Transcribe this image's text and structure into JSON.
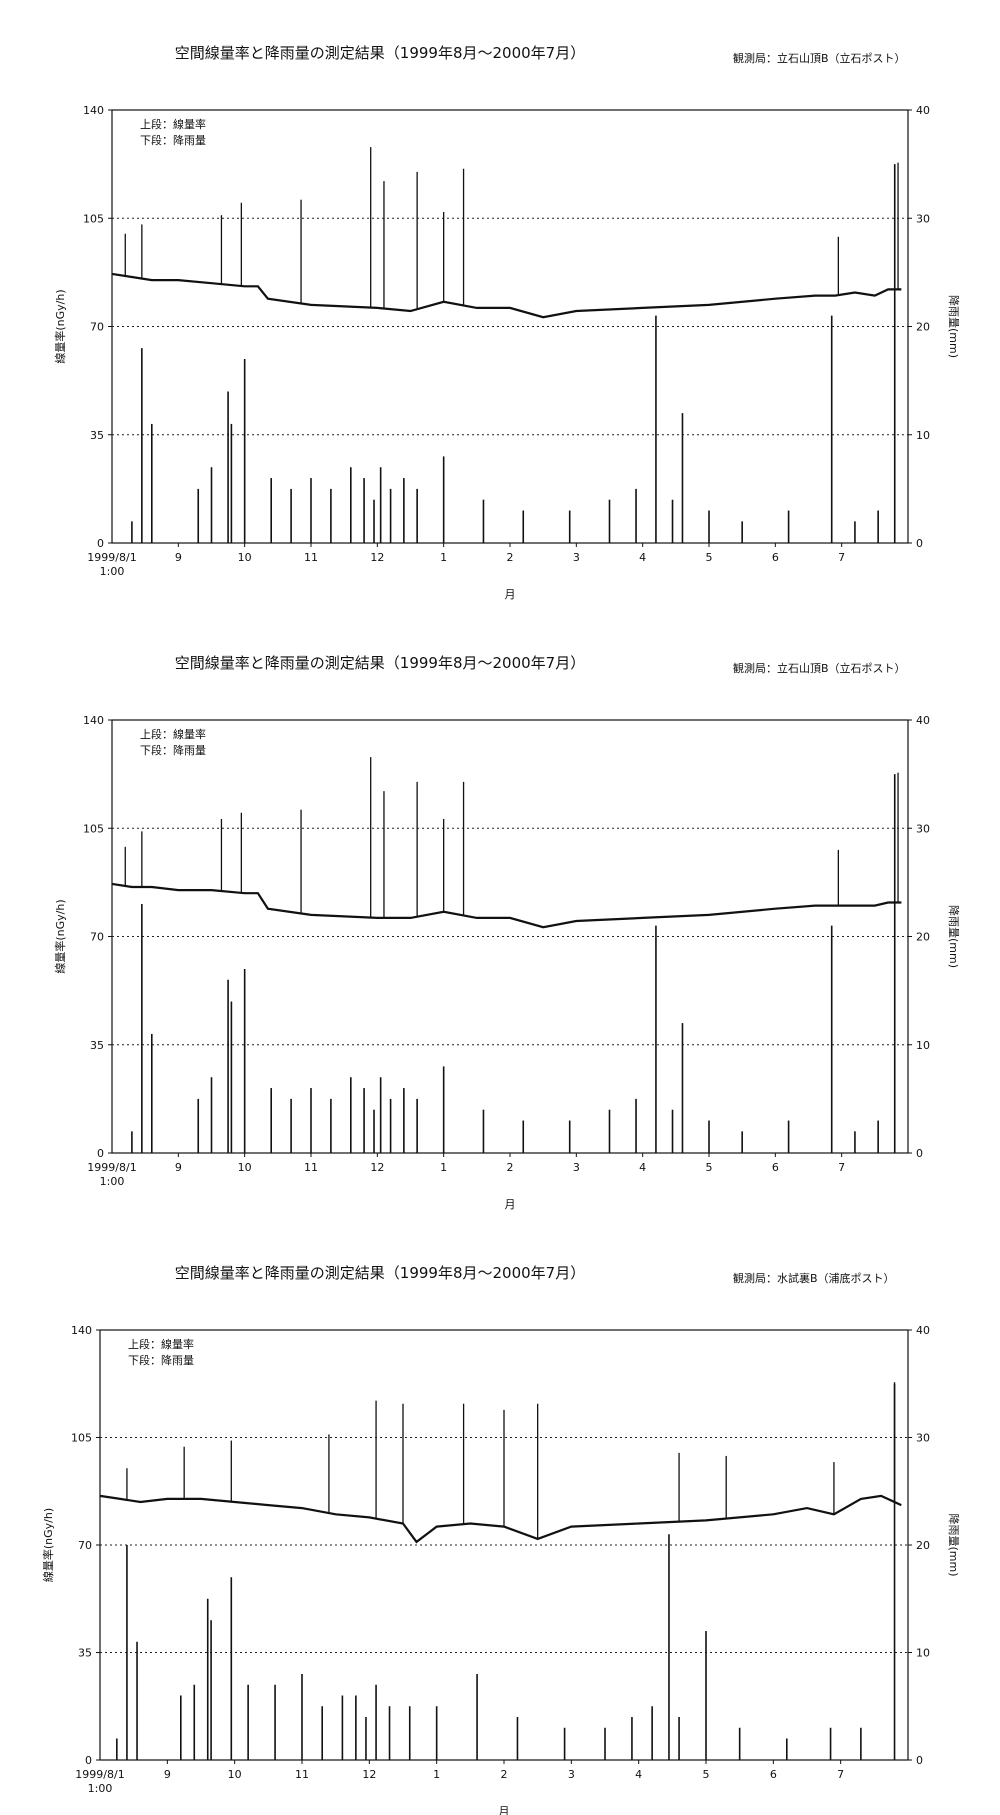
{
  "chart_data": [
    {
      "type": "line",
      "title": "空間線量率と降雨量の測定結果（1999年8月～2000年7月）",
      "station": "観測局：立石山頂B（立石ポスト）",
      "legend": [
        "上段：線量率",
        "下段：降雨量"
      ],
      "xlabel": "月",
      "ylabel_left": "線量率(nGy/h)",
      "ylabel_right": "降雨量(mm)",
      "ylim_left": [
        0,
        140
      ],
      "ylim_right": [
        0,
        40
      ],
      "yticks_left": [
        "0",
        "35",
        "70",
        "105",
        "140"
      ],
      "yticks_right": [
        "0",
        "10",
        "20",
        "30",
        "40"
      ],
      "x_start_label": [
        "1999/8/1",
        "1:00"
      ],
      "month_ticks": [
        "9",
        "10",
        "11",
        "12",
        "1",
        "2",
        "3",
        "4",
        "5",
        "6",
        "7"
      ],
      "grid": "dotted horizontal at 35, 70, 105",
      "series": [
        {
          "name": "線量率",
          "axis": "left",
          "style": "line",
          "x_months": [
            0,
            0.3,
            0.6,
            1.0,
            1.5,
            2.0,
            2.2,
            2.35,
            3.0,
            4.0,
            4.5,
            5.0,
            5.5,
            6.0,
            6.5,
            7.0,
            8.0,
            9.0,
            10.0,
            10.6,
            10.9,
            11.2,
            11.5,
            11.7,
            11.9
          ],
          "values": [
            87,
            86,
            85,
            85,
            84,
            83,
            83,
            79,
            77,
            76,
            75,
            78,
            76,
            76,
            73,
            75,
            76,
            77,
            79,
            80,
            80,
            81,
            80,
            82,
            82
          ]
        },
        {
          "name": "線量率スパイク",
          "axis": "left",
          "style": "spikes",
          "x_months": [
            0.2,
            0.45,
            1.65,
            1.95,
            2.85,
            3.9,
            4.1,
            4.6,
            5.0,
            5.3,
            10.95,
            11.85
          ],
          "values": [
            100,
            103,
            106,
            110,
            111,
            128,
            117,
            120,
            107,
            121,
            99,
            123
          ]
        },
        {
          "name": "降雨量",
          "axis": "right",
          "style": "bars",
          "x_months": [
            0.3,
            0.45,
            0.6,
            1.3,
            1.5,
            1.75,
            1.8,
            2.0,
            2.4,
            2.7,
            3.0,
            3.3,
            3.6,
            3.8,
            3.95,
            4.05,
            4.2,
            4.4,
            4.6,
            5.0,
            5.6,
            6.2,
            6.9,
            7.5,
            7.9,
            8.2,
            8.45,
            8.6,
            9.0,
            9.5,
            10.2,
            10.85,
            11.2,
            11.55,
            11.8
          ],
          "values": [
            2,
            18,
            11,
            5,
            7,
            14,
            11,
            17,
            6,
            5,
            6,
            5,
            7,
            6,
            4,
            7,
            5,
            6,
            5,
            8,
            4,
            3,
            3,
            4,
            5,
            21,
            4,
            12,
            3,
            2,
            3,
            21,
            2,
            3,
            35
          ]
        }
      ]
    },
    {
      "type": "line",
      "title": "空間線量率と降雨量の測定結果（1999年8月～2000年7月）",
      "station": "観測局：立石山頂B（立石ポスト）",
      "legend": [
        "上段：線量率",
        "下段：降雨量"
      ],
      "xlabel": "月",
      "ylabel_left": "線量率(nGy/h)",
      "ylabel_right": "降雨量(mm)",
      "ylim_left": [
        0,
        140
      ],
      "ylim_right": [
        0,
        40
      ],
      "yticks_left": [
        "0",
        "35",
        "70",
        "105",
        "140"
      ],
      "yticks_right": [
        "0",
        "10",
        "20",
        "30",
        "40"
      ],
      "x_start_label": [
        "1999/8/1",
        "1:00"
      ],
      "month_ticks": [
        "9",
        "10",
        "11",
        "12",
        "1",
        "2",
        "3",
        "4",
        "5",
        "6",
        "7"
      ],
      "grid": "dotted horizontal at 35, 70, 105",
      "series": [
        {
          "name": "線量率",
          "axis": "left",
          "style": "line",
          "x_months": [
            0,
            0.3,
            0.6,
            1.0,
            1.5,
            2.0,
            2.2,
            2.35,
            3.0,
            4.0,
            4.5,
            5.0,
            5.5,
            6.0,
            6.5,
            7.0,
            8.0,
            9.0,
            10.0,
            10.6,
            10.9,
            11.2,
            11.5,
            11.7,
            11.9
          ],
          "values": [
            87,
            86,
            86,
            85,
            85,
            84,
            84,
            79,
            77,
            76,
            76,
            78,
            76,
            76,
            73,
            75,
            76,
            77,
            79,
            80,
            80,
            80,
            80,
            81,
            81
          ]
        },
        {
          "name": "線量率スパイク",
          "axis": "left",
          "style": "spikes",
          "x_months": [
            0.2,
            0.45,
            1.65,
            1.95,
            2.85,
            3.9,
            4.1,
            4.6,
            5.0,
            5.3,
            10.95,
            11.85
          ],
          "values": [
            99,
            104,
            108,
            110,
            111,
            128,
            117,
            120,
            108,
            120,
            98,
            123
          ]
        },
        {
          "name": "降雨量",
          "axis": "right",
          "style": "bars",
          "x_months": [
            0.3,
            0.45,
            0.6,
            1.3,
            1.5,
            1.75,
            1.8,
            2.0,
            2.4,
            2.7,
            3.0,
            3.3,
            3.6,
            3.8,
            3.95,
            4.05,
            4.2,
            4.4,
            4.6,
            5.0,
            5.6,
            6.2,
            6.9,
            7.5,
            7.9,
            8.2,
            8.45,
            8.6,
            9.0,
            9.5,
            10.2,
            10.85,
            11.2,
            11.55,
            11.8
          ],
          "values": [
            2,
            23,
            11,
            5,
            7,
            16,
            14,
            17,
            6,
            5,
            6,
            5,
            7,
            6,
            4,
            7,
            5,
            6,
            5,
            8,
            4,
            3,
            3,
            4,
            5,
            21,
            4,
            12,
            3,
            2,
            3,
            21,
            2,
            3,
            35
          ]
        }
      ]
    },
    {
      "type": "line",
      "title": "空間線量率と降雨量の測定結果（1999年8月～2000年7月）",
      "station": "観測局：水試裏B（浦底ポスト）",
      "legend": [
        "上段：線量率",
        "下段：降雨量"
      ],
      "xlabel": "月",
      "ylabel_left": "線量率(nGy/h)",
      "ylabel_right": "降雨量(mm)",
      "ylim_left": [
        0,
        140
      ],
      "ylim_right": [
        0,
        40
      ],
      "yticks_left": [
        "0",
        "35",
        "70",
        "105",
        "140"
      ],
      "yticks_right": [
        "0",
        "10",
        "20",
        "30",
        "40"
      ],
      "x_start_label": [
        "1999/8/1",
        "1:00"
      ],
      "month_ticks": [
        "9",
        "10",
        "11",
        "12",
        "1",
        "2",
        "3",
        "4",
        "5",
        "6",
        "7"
      ],
      "grid": "dotted horizontal at 35, 70, 105",
      "series": [
        {
          "name": "線量率",
          "axis": "left",
          "style": "line",
          "x_months": [
            0,
            0.3,
            0.6,
            1.0,
            1.5,
            2.0,
            2.5,
            3.0,
            3.5,
            4.0,
            4.5,
            4.7,
            5.0,
            5.5,
            6.0,
            6.5,
            7.0,
            8.0,
            9.0,
            10.0,
            10.5,
            10.9,
            11.3,
            11.6,
            11.9
          ],
          "values": [
            86,
            85,
            84,
            85,
            85,
            84,
            83,
            82,
            80,
            79,
            77,
            71,
            76,
            77,
            76,
            72,
            76,
            77,
            78,
            80,
            82,
            80,
            85,
            86,
            83
          ]
        },
        {
          "name": "線量率スパイク",
          "axis": "left",
          "style": "spikes",
          "x_months": [
            0.4,
            1.25,
            1.95,
            3.4,
            4.1,
            4.5,
            5.4,
            6.0,
            6.5,
            8.6,
            9.3,
            10.9,
            11.8
          ],
          "values": [
            95,
            102,
            104,
            106,
            117,
            116,
            116,
            114,
            116,
            100,
            99,
            97,
            123
          ]
        },
        {
          "name": "降雨量",
          "axis": "right",
          "style": "bars",
          "x_months": [
            0.25,
            0.4,
            0.55,
            1.2,
            1.4,
            1.6,
            1.65,
            1.95,
            2.2,
            2.6,
            3.0,
            3.3,
            3.6,
            3.8,
            3.95,
            4.1,
            4.3,
            4.6,
            5.0,
            5.6,
            6.2,
            6.9,
            7.5,
            7.9,
            8.2,
            8.45,
            8.6,
            9.0,
            9.5,
            10.2,
            10.85,
            11.3,
            11.8
          ],
          "values": [
            2,
            20,
            11,
            6,
            7,
            15,
            13,
            17,
            7,
            7,
            8,
            5,
            6,
            6,
            4,
            7,
            5,
            5,
            5,
            8,
            4,
            3,
            3,
            4,
            5,
            21,
            4,
            12,
            3,
            2,
            3,
            3,
            35
          ]
        }
      ]
    }
  ]
}
